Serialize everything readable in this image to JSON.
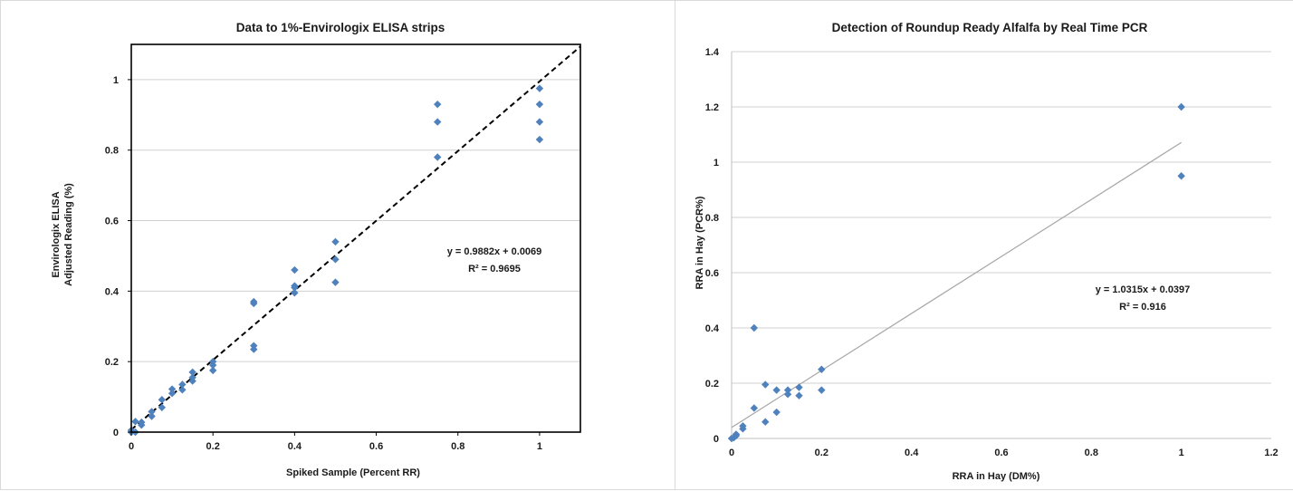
{
  "chart_data": [
    {
      "type": "scatter",
      "title": "Data to 1%-Envirologix ELISA strips",
      "xlabel": "Spiked Sample (Percent RR)",
      "ylabel_lines": [
        "Envirologix  ELISA",
        "Adjusted  Reading (%)"
      ],
      "xlim": [
        0,
        1.1
      ],
      "ylim": [
        0,
        1.1
      ],
      "x_ticks": [
        "0",
        "0.2",
        "0.4",
        "0.6",
        "0.8",
        "1"
      ],
      "x_tick_values": [
        0,
        0.2,
        0.4,
        0.6,
        0.8,
        1
      ],
      "y_ticks": [
        "0",
        "0.2",
        "0.4",
        "0.6",
        "0.8",
        "1"
      ],
      "y_tick_values": [
        0,
        0.2,
        0.4,
        0.6,
        0.8,
        1
      ],
      "grid": "horizontal",
      "marker_color": "#4f81bd",
      "trendline": {
        "slope": 0.9882,
        "intercept": 0.0069,
        "style": "dashed",
        "color": "#000000",
        "x_range": [
          0,
          1.1
        ]
      },
      "equation": "y = 0.9882x + 0.0069",
      "r_squared": "R² = 0.9695",
      "points": [
        [
          0,
          0
        ],
        [
          0,
          0.005
        ],
        [
          0.01,
          0
        ],
        [
          0.01,
          0.03
        ],
        [
          0.025,
          0.02
        ],
        [
          0.025,
          0.028
        ],
        [
          0.05,
          0.045
        ],
        [
          0.05,
          0.058
        ],
        [
          0.075,
          0.07
        ],
        [
          0.075,
          0.092
        ],
        [
          0.1,
          0.11
        ],
        [
          0.1,
          0.122
        ],
        [
          0.125,
          0.12
        ],
        [
          0.125,
          0.135
        ],
        [
          0.15,
          0.145
        ],
        [
          0.15,
          0.155
        ],
        [
          0.15,
          0.17
        ],
        [
          0.2,
          0.175
        ],
        [
          0.2,
          0.19
        ],
        [
          0.2,
          0.2
        ],
        [
          0.3,
          0.235
        ],
        [
          0.3,
          0.245
        ],
        [
          0.3,
          0.365
        ],
        [
          0.3,
          0.37
        ],
        [
          0.4,
          0.395
        ],
        [
          0.4,
          0.41
        ],
        [
          0.4,
          0.415
        ],
        [
          0.4,
          0.46
        ],
        [
          0.5,
          0.425
        ],
        [
          0.5,
          0.49
        ],
        [
          0.5,
          0.54
        ],
        [
          0.75,
          0.78
        ],
        [
          0.75,
          0.88
        ],
        [
          0.75,
          0.93
        ],
        [
          1,
          0.83
        ],
        [
          1,
          0.88
        ],
        [
          1,
          0.93
        ],
        [
          1,
          0.975
        ]
      ]
    },
    {
      "type": "scatter",
      "title": "Detection of Roundup Ready Alfalfa by Real Time PCR",
      "xlabel": "RRA in Hay (DM%)",
      "ylabel": "RRA in Hay (PCR%)",
      "xlim": [
        0,
        1.2
      ],
      "ylim": [
        0,
        1.4
      ],
      "x_ticks": [
        "0",
        "0.2",
        "0.4",
        "0.6",
        "0.8",
        "1",
        "1.2"
      ],
      "x_tick_values": [
        0,
        0.2,
        0.4,
        0.6,
        0.8,
        1,
        1.2
      ],
      "y_ticks": [
        "0",
        "0.2",
        "0.4",
        "0.6",
        "0.8",
        "1",
        "1.2",
        "1.4"
      ],
      "y_tick_values": [
        0,
        0.2,
        0.4,
        0.6,
        0.8,
        1,
        1.2,
        1.4
      ],
      "grid": "horizontal",
      "marker_color": "#4f81bd",
      "trendline": {
        "slope": 1.0315,
        "intercept": 0.0397,
        "style": "solid",
        "color": "#a6a6a6",
        "x_range": [
          0,
          1
        ]
      },
      "equation": "y = 1.0315x + 0.0397",
      "r_squared": "R² = 0.916",
      "points": [
        [
          0,
          0
        ],
        [
          0.005,
          0.003
        ],
        [
          0.01,
          0.01
        ],
        [
          0.01,
          0.015
        ],
        [
          0.025,
          0.035
        ],
        [
          0.025,
          0.045
        ],
        [
          0.05,
          0.11
        ],
        [
          0.05,
          0.4
        ],
        [
          0.075,
          0.06
        ],
        [
          0.075,
          0.195
        ],
        [
          0.1,
          0.095
        ],
        [
          0.1,
          0.175
        ],
        [
          0.125,
          0.16
        ],
        [
          0.125,
          0.175
        ],
        [
          0.15,
          0.155
        ],
        [
          0.15,
          0.185
        ],
        [
          0.2,
          0.175
        ],
        [
          0.2,
          0.25
        ],
        [
          1,
          0.95
        ],
        [
          1,
          1.2
        ]
      ]
    }
  ]
}
